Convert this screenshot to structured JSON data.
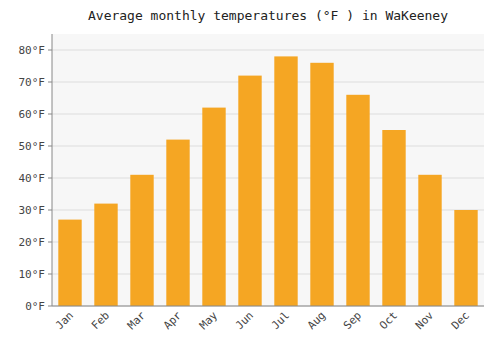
{
  "chart_data": {
    "type": "bar",
    "title": "Average monthly temperatures (°F ) in WaKeeney",
    "categories": [
      "Jan",
      "Feb",
      "Mar",
      "Apr",
      "May",
      "Jun",
      "Jul",
      "Aug",
      "Sep",
      "Oct",
      "Nov",
      "Dec"
    ],
    "values": [
      27,
      32,
      41,
      52,
      62,
      72,
      78,
      76,
      66,
      55,
      41,
      30
    ],
    "color": "#F5A623",
    "ylim": [
      0,
      85
    ],
    "yticks": [
      {
        "value": 0,
        "label": "0°F"
      },
      {
        "value": 10,
        "label": "10°F"
      },
      {
        "value": 20,
        "label": "20°F"
      },
      {
        "value": 30,
        "label": "30°F"
      },
      {
        "value": 40,
        "label": "40°F"
      },
      {
        "value": 50,
        "label": "50°F"
      },
      {
        "value": 60,
        "label": "60°F"
      },
      {
        "value": 70,
        "label": "70°F"
      },
      {
        "value": 80,
        "label": "80°F"
      }
    ],
    "grid": true
  }
}
